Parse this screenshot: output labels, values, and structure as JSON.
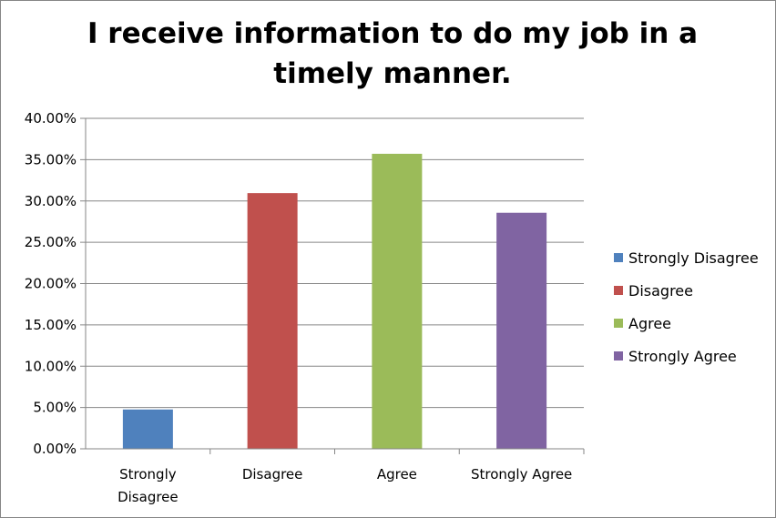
{
  "chart_data": {
    "type": "bar",
    "title": "I receive information to do my job in a timely manner.",
    "categories": [
      "Strongly Disagree",
      "Disagree",
      "Agree",
      "Strongly Agree"
    ],
    "category_labels": [
      [
        "Strongly",
        "Disagree"
      ],
      [
        "Disagree"
      ],
      [
        "Agree"
      ],
      [
        "Strongly Agree"
      ]
    ],
    "values": [
      4.76,
      30.95,
      35.71,
      28.57
    ],
    "colors": [
      "#4F81BD",
      "#C0504D",
      "#9BBB59",
      "#8064A2"
    ],
    "y_ticks": [
      "0.00%",
      "5.00%",
      "10.00%",
      "15.00%",
      "20.00%",
      "25.00%",
      "30.00%",
      "35.00%",
      "40.00%"
    ],
    "ylim": [
      0,
      40
    ],
    "ytick_step": 5,
    "grid": true,
    "legend": {
      "position": "right",
      "entries": [
        "Strongly Disagree",
        "Disagree",
        "Agree",
        "Strongly Agree"
      ]
    }
  }
}
